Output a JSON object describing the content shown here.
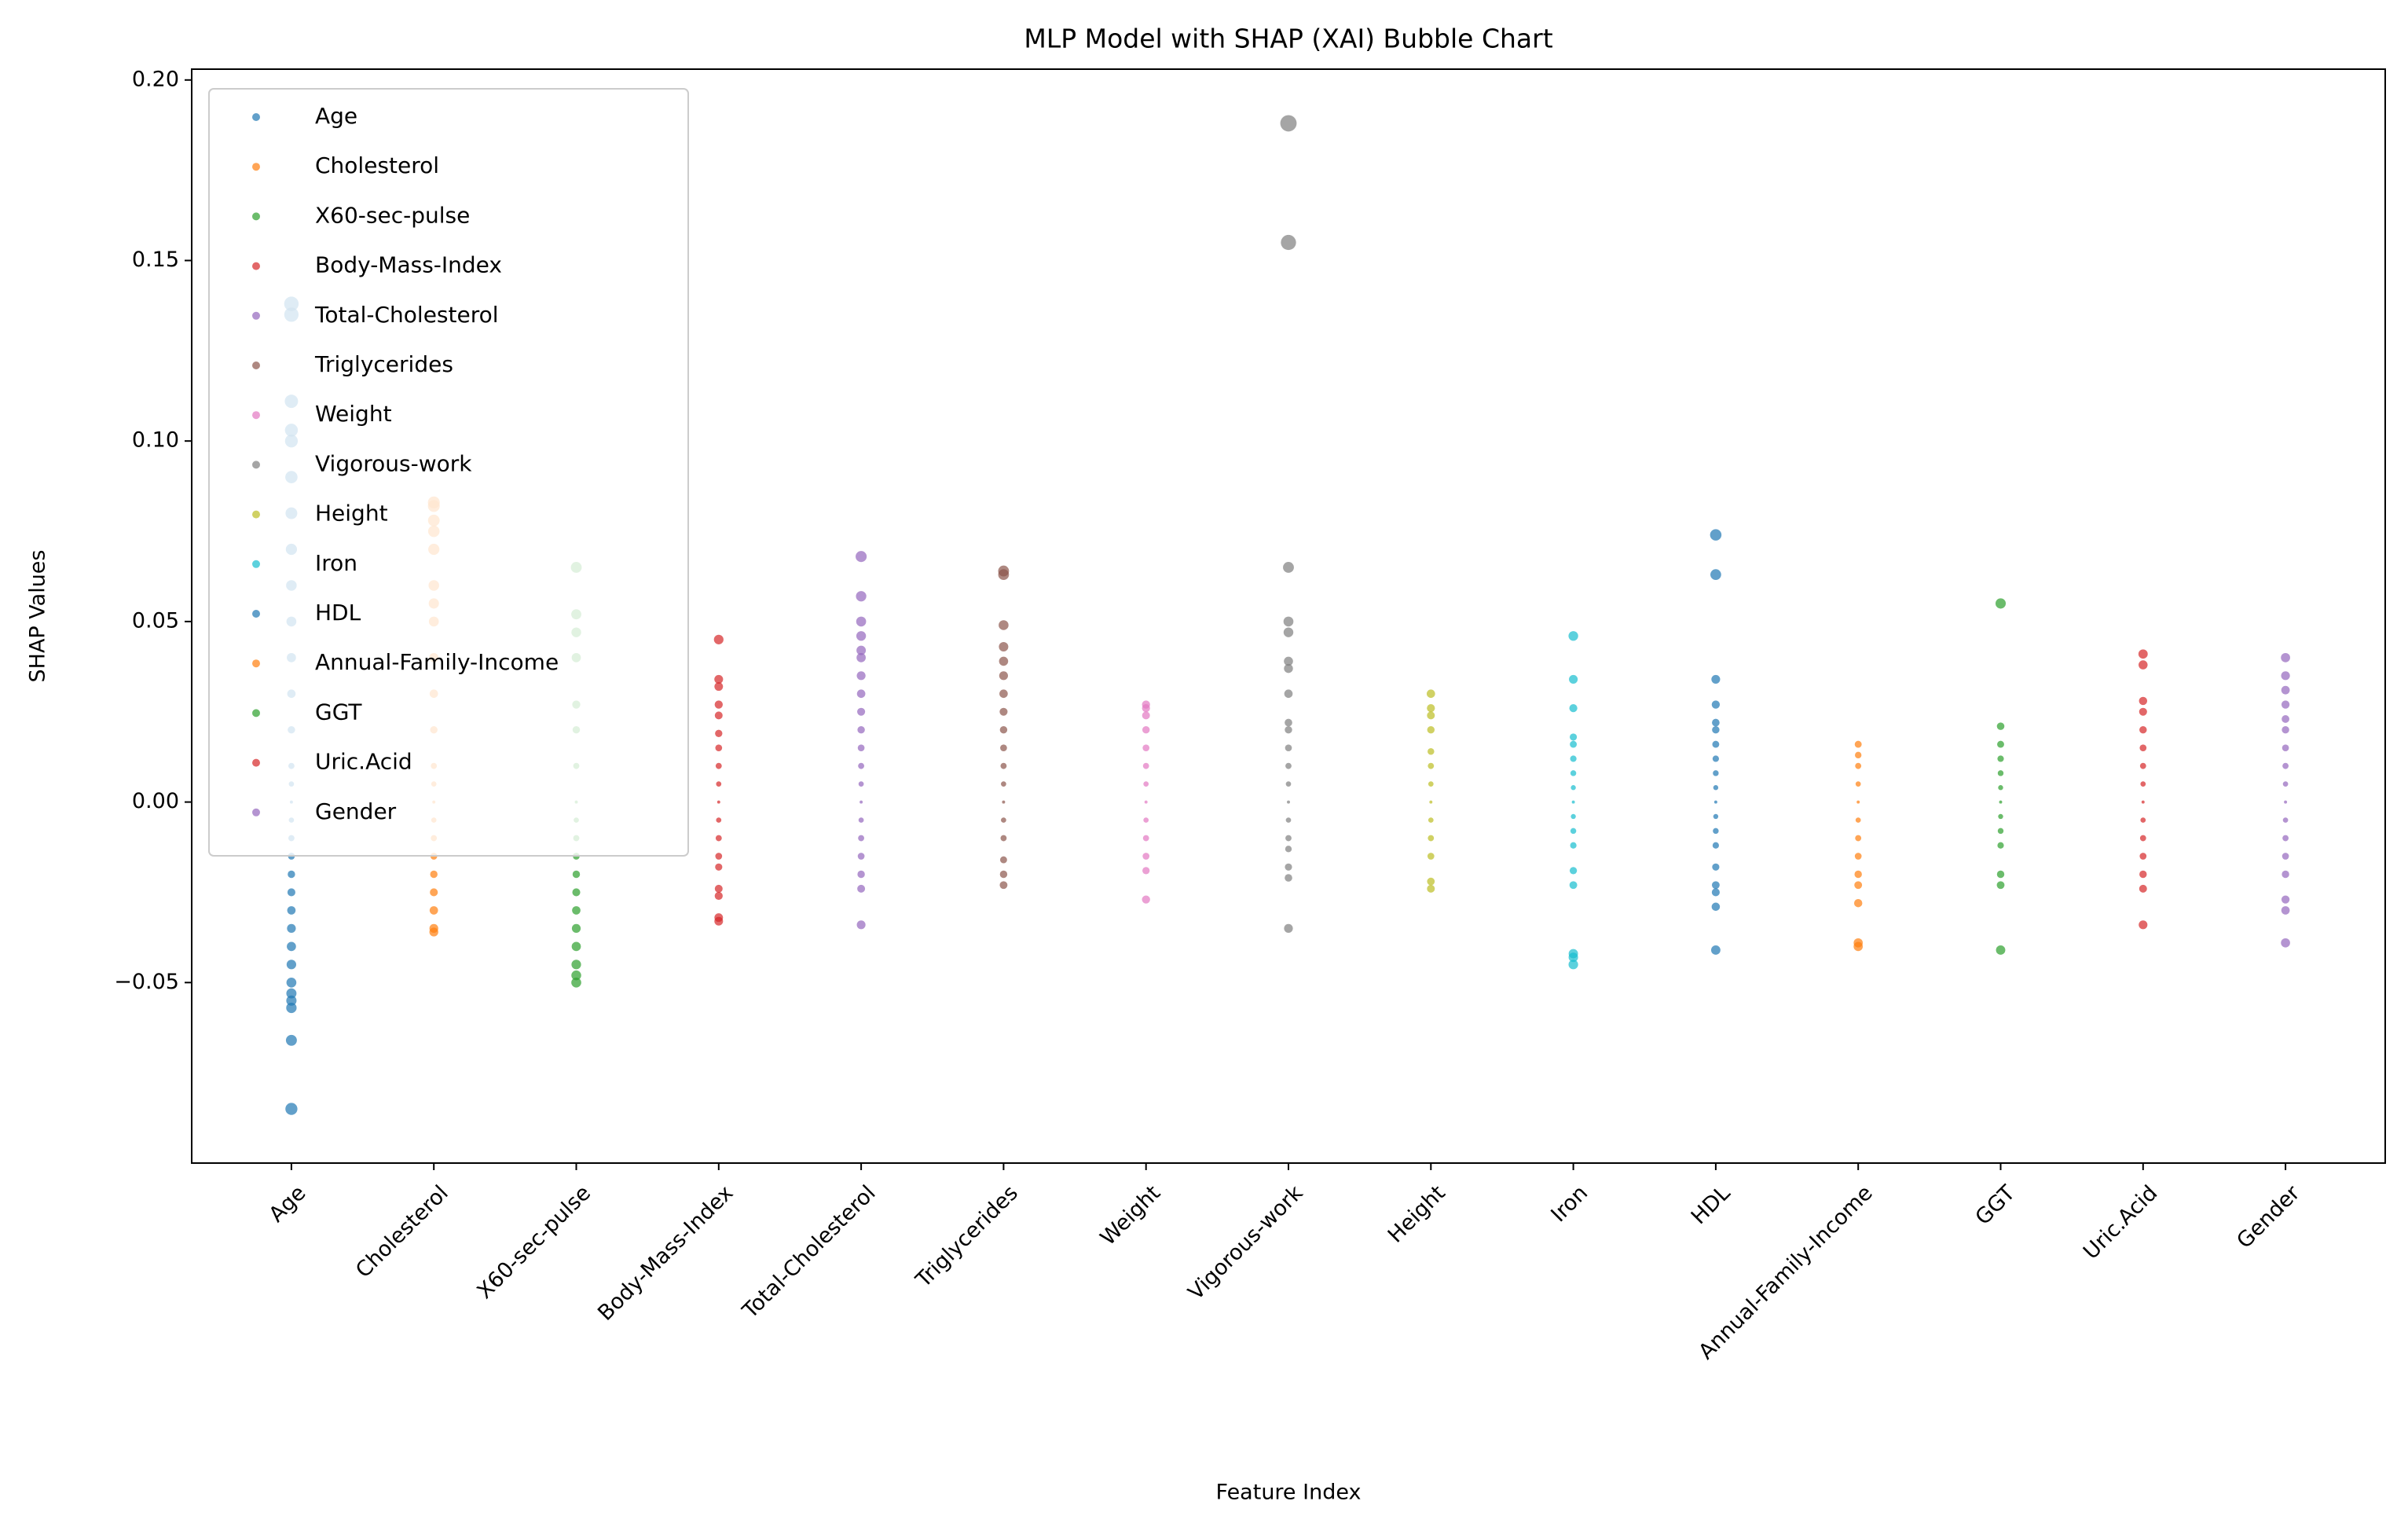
{
  "chart_data": {
    "type": "scatter",
    "title": "MLP Model with SHAP (XAI) Bubble Chart",
    "x_label": "Feature Index",
    "y_label": "SHAP Values",
    "xlim": [
      -0.7,
      14.7
    ],
    "ylim": [
      -0.1,
      0.203
    ],
    "xticks": [
      {
        "value": 0,
        "label": "Age"
      },
      {
        "value": 1,
        "label": "Cholesterol"
      },
      {
        "value": 2,
        "label": "X60-sec-pulse"
      },
      {
        "value": 3,
        "label": "Body-Mass-Index"
      },
      {
        "value": 4,
        "label": "Total-Cholesterol"
      },
      {
        "value": 5,
        "label": "Triglycerides"
      },
      {
        "value": 6,
        "label": "Weight"
      },
      {
        "value": 7,
        "label": "Vigorous-work"
      },
      {
        "value": 8,
        "label": "Height"
      },
      {
        "value": 9,
        "label": "Iron"
      },
      {
        "value": 10,
        "label": "HDL"
      },
      {
        "value": 11,
        "label": "Annual-Family-Income"
      },
      {
        "value": 12,
        "label": "GGT"
      },
      {
        "value": 13,
        "label": "Uric.Acid"
      },
      {
        "value": 14,
        "label": "Gender"
      }
    ],
    "yticks": [
      {
        "value": -0.05,
        "label": "−0.05"
      },
      {
        "value": 0,
        "label": "0.00"
      },
      0.05,
      {
        "value": 0.1,
        "label": "0.10"
      },
      0.15,
      {
        "value": 0.2,
        "label": "0.20"
      }
    ],
    "legend": "upper left",
    "series": [
      {
        "name": "Age",
        "color": "#1f77b4",
        "x": 0,
        "values": [
          -0.085,
          -0.066,
          -0.057,
          -0.055,
          -0.053,
          -0.05,
          -0.045,
          -0.04,
          -0.035,
          -0.03,
          -0.025,
          -0.02,
          -0.015,
          -0.01,
          -0.005,
          0,
          0.005,
          0.01,
          0.02,
          0.03,
          0.04,
          0.05,
          0.06,
          0.07,
          0.08,
          0.09,
          0.1,
          0.103,
          0.111,
          0.135,
          0.138
        ]
      },
      {
        "name": "Cholesterol",
        "color": "#ff7f0e",
        "x": 1,
        "values": [
          -0.036,
          -0.035,
          -0.03,
          -0.025,
          -0.02,
          -0.015,
          -0.01,
          -0.005,
          0,
          0.005,
          0.01,
          0.02,
          0.03,
          0.04,
          0.05,
          0.055,
          0.06,
          0.07,
          0.075,
          0.078,
          0.082,
          0.083
        ]
      },
      {
        "name": "X60-sec-pulse",
        "color": "#2ca02c",
        "x": 2,
        "values": [
          -0.05,
          -0.048,
          -0.045,
          -0.04,
          -0.035,
          -0.03,
          -0.025,
          -0.02,
          -0.015,
          -0.01,
          -0.005,
          0,
          0.01,
          0.02,
          0.027,
          0.04,
          0.047,
          0.052,
          0.065
        ]
      },
      {
        "name": "Body-Mass-Index",
        "color": "#d62728",
        "x": 3,
        "values": [
          -0.033,
          -0.032,
          -0.026,
          -0.024,
          -0.018,
          -0.015,
          -0.01,
          -0.005,
          0,
          0.005,
          0.01,
          0.015,
          0.019,
          0.024,
          0.027,
          0.032,
          0.034,
          0.045
        ]
      },
      {
        "name": "Total-Cholesterol",
        "color": "#9467bd",
        "x": 4,
        "values": [
          -0.034,
          -0.024,
          -0.02,
          -0.015,
          -0.01,
          -0.005,
          0,
          0.005,
          0.01,
          0.015,
          0.02,
          0.025,
          0.03,
          0.035,
          0.04,
          0.042,
          0.046,
          0.05,
          0.057,
          0.068
        ]
      },
      {
        "name": "Triglycerides",
        "color": "#8c564b",
        "x": 5,
        "values": [
          -0.023,
          -0.02,
          -0.016,
          -0.01,
          -0.005,
          0,
          0.005,
          0.01,
          0.015,
          0.02,
          0.025,
          0.03,
          0.035,
          0.039,
          0.043,
          0.049,
          0.063,
          0.064
        ]
      },
      {
        "name": "Weight",
        "color": "#e377c2",
        "x": 6,
        "values": [
          -0.027,
          -0.019,
          -0.015,
          -0.01,
          -0.005,
          0,
          0.005,
          0.01,
          0.015,
          0.02,
          0.024,
          0.026,
          0.027
        ]
      },
      {
        "name": "Vigorous-work",
        "color": "#7f7f7f",
        "x": 7,
        "values": [
          -0.035,
          -0.021,
          -0.018,
          -0.013,
          -0.01,
          -0.005,
          0,
          0.005,
          0.01,
          0.015,
          0.02,
          0.022,
          0.03,
          0.037,
          0.039,
          0.047,
          0.05,
          0.065,
          0.155,
          0.188
        ]
      },
      {
        "name": "Height",
        "color": "#bcbd22",
        "x": 8,
        "values": [
          -0.024,
          -0.022,
          -0.015,
          -0.01,
          -0.005,
          0,
          0.005,
          0.01,
          0.014,
          0.02,
          0.024,
          0.026,
          0.03
        ]
      },
      {
        "name": "Iron",
        "color": "#17becf",
        "x": 9,
        "values": [
          -0.045,
          -0.043,
          -0.042,
          -0.023,
          -0.019,
          -0.012,
          -0.008,
          -0.004,
          0,
          0.004,
          0.008,
          0.012,
          0.016,
          0.018,
          0.026,
          0.034,
          0.046
        ]
      },
      {
        "name": "HDL",
        "color": "#1f77b4",
        "x": 10,
        "values": [
          -0.041,
          -0.029,
          -0.025,
          -0.023,
          -0.018,
          -0.012,
          -0.008,
          -0.004,
          0,
          0.004,
          0.008,
          0.012,
          0.016,
          0.02,
          0.022,
          0.027,
          0.034,
          0.063,
          0.074
        ]
      },
      {
        "name": "Annual-Family-Income",
        "color": "#ff7f0e",
        "x": 11,
        "values": [
          -0.04,
          -0.039,
          -0.028,
          -0.023,
          -0.02,
          -0.015,
          -0.01,
          -0.005,
          0,
          0.005,
          0.01,
          0.013,
          0.016
        ]
      },
      {
        "name": "GGT",
        "color": "#2ca02c",
        "x": 12,
        "values": [
          -0.041,
          -0.023,
          -0.02,
          -0.012,
          -0.008,
          -0.004,
          0,
          0.004,
          0.008,
          0.012,
          0.016,
          0.021,
          0.055
        ]
      },
      {
        "name": "Uric.Acid",
        "color": "#d62728",
        "x": 13,
        "values": [
          -0.034,
          -0.024,
          -0.02,
          -0.015,
          -0.01,
          -0.005,
          0,
          0.005,
          0.01,
          0.015,
          0.02,
          0.025,
          0.028,
          0.038,
          0.041
        ]
      },
      {
        "name": "Gender",
        "color": "#9467bd",
        "x": 14,
        "values": [
          -0.039,
          -0.03,
          -0.027,
          -0.02,
          -0.015,
          -0.01,
          -0.005,
          0,
          0.005,
          0.01,
          0.015,
          0.02,
          0.023,
          0.027,
          0.031,
          0.035,
          0.04
        ]
      }
    ]
  }
}
